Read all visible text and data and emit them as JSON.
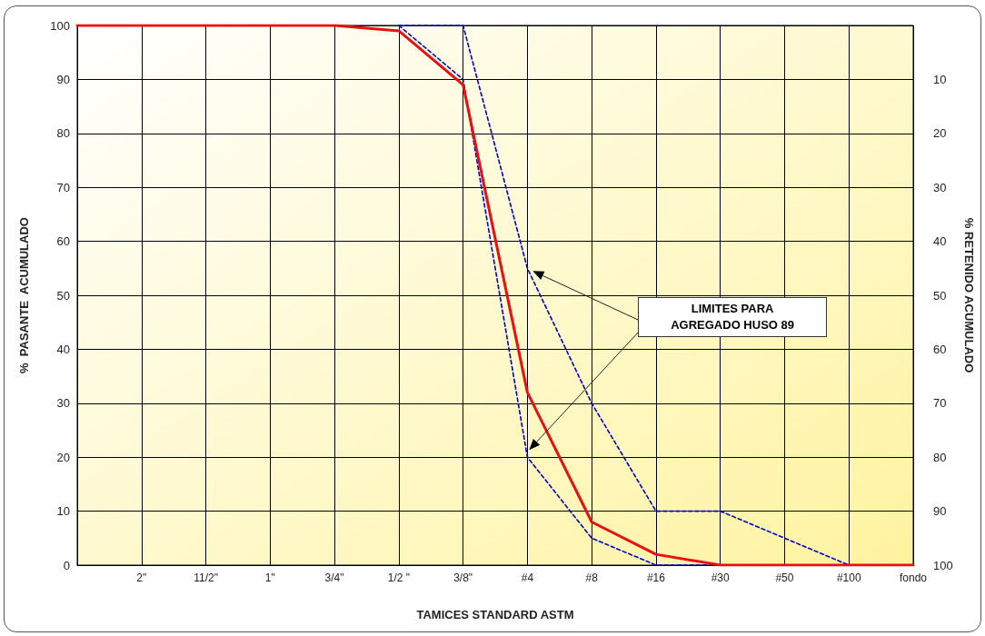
{
  "chart_data": {
    "type": "line",
    "xlabel": "TAMICES STANDARD ASTM",
    "ylabel": "%  PASANTE  ACUMULADO",
    "y2label": "% RETENIDO ACUMULADO",
    "categories": [
      null,
      "2\"",
      "11/2\"",
      "1\"",
      "3/4\"",
      "1/2 \"",
      "3/8\"",
      "#4",
      "#8",
      "#16",
      "#30",
      "#50",
      "#100",
      "fondo"
    ],
    "series": [
      {
        "color": "#0000cc",
        "line_style": "dashed",
        "values": [
          null,
          null,
          null,
          null,
          null,
          100,
          100,
          55,
          30,
          10,
          10,
          5,
          0,
          0
        ]
      },
      {
        "color": "#0000cc",
        "line_style": "dashed",
        "values": [
          null,
          null,
          null,
          null,
          null,
          100,
          90,
          20,
          5,
          0,
          0,
          0,
          0,
          0
        ]
      },
      {
        "color": "#e8110f",
        "line_style": "solid",
        "values": [
          100,
          100,
          100,
          100,
          100,
          99,
          89,
          32,
          8,
          2,
          0,
          0,
          0,
          0
        ]
      }
    ],
    "ylim": [
      0,
      100
    ],
    "yticks": [
      0,
      10,
      20,
      30,
      40,
      50,
      60,
      70,
      80,
      90,
      100
    ],
    "y2lim": [
      100,
      0
    ],
    "y2ticks": [
      10,
      20,
      30,
      40,
      50,
      60,
      70,
      80,
      90,
      100
    ],
    "grid": true,
    "marker": "none",
    "annotations": [
      "LIMITES PARA\nAGREGADO HUSO 89"
    ]
  }
}
